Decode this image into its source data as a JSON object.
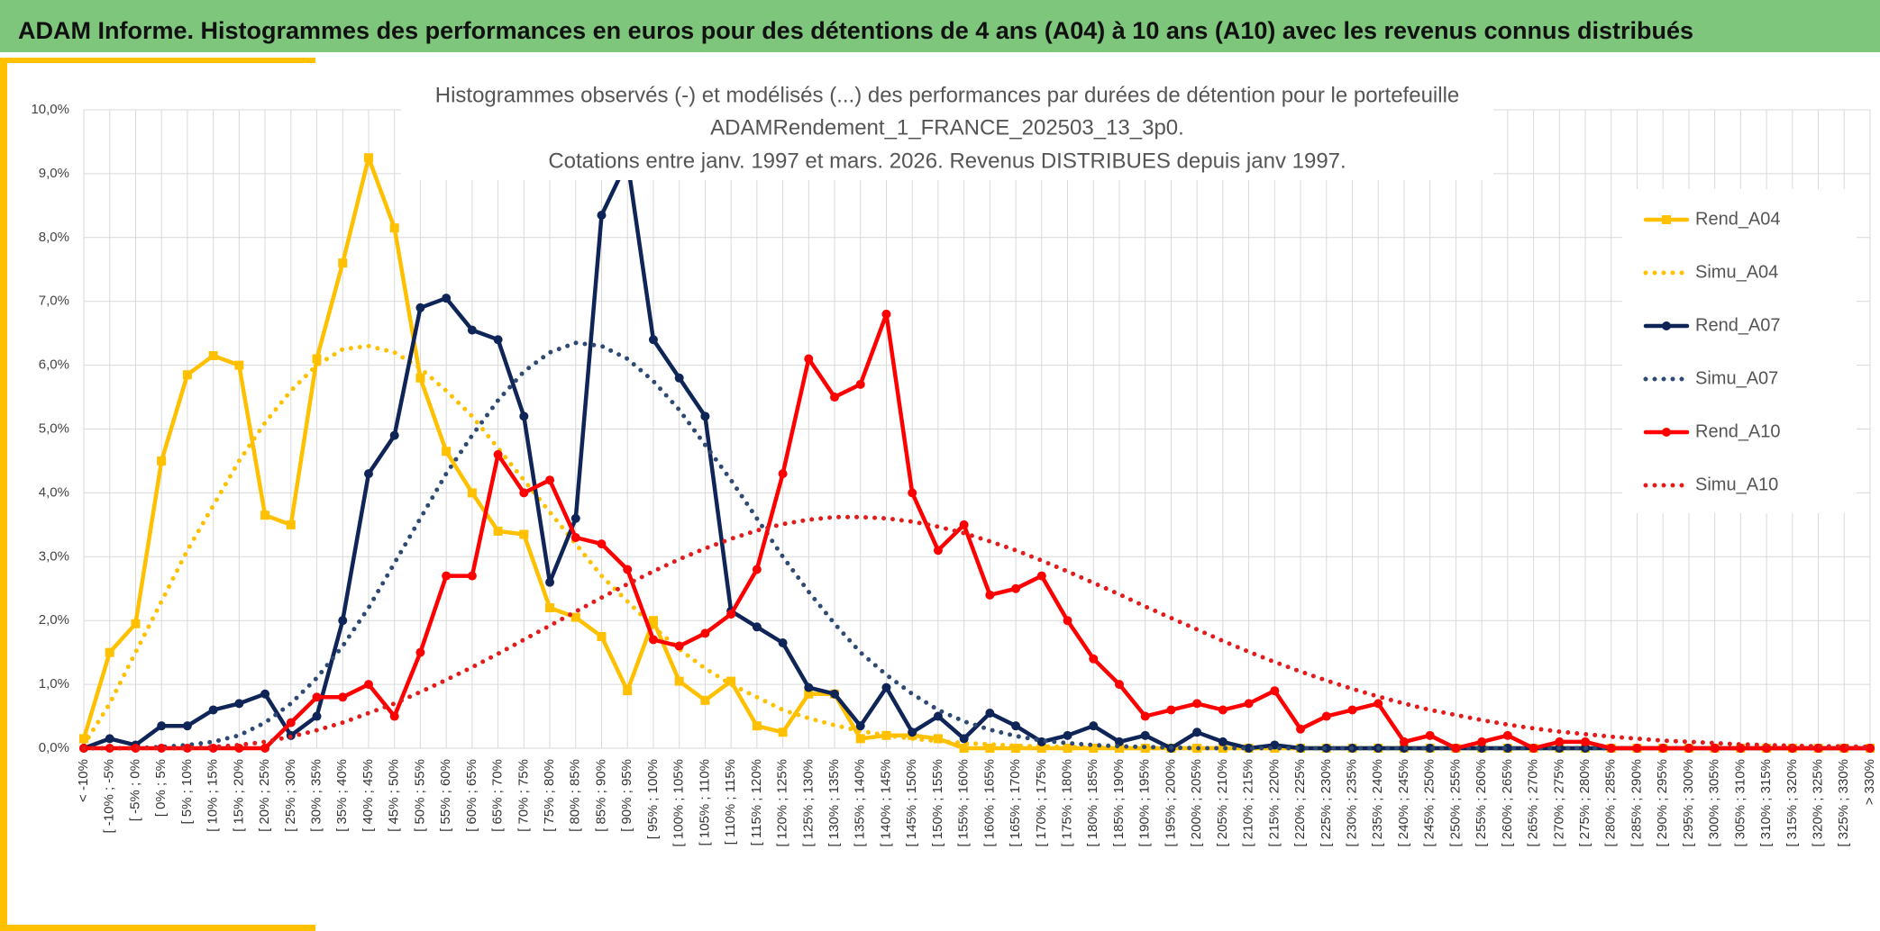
{
  "header_title": "ADAM Informe. Histogrammes des performances en euros pour des détentions de 4 ans (A04) à 10 ans (A10) avec les revenus connus distribués",
  "chart_data": {
    "type": "line",
    "title": [
      "Histogrammes observés (-) et modélisés (...) des performances par durées de détention pour le portefeuille",
      "ADAMRendement_1_FRANCE_202503_13_3p0.",
      "Cotations entre janv. 1997 et mars. 2026. Revenus DISTRIBUES depuis janv 1997."
    ],
    "categories": [
      "< -10%",
      "[ -10% ; -5%",
      "[ -5% ; 0%",
      "[ 0% ; 5%",
      "[ 5% ; 10%",
      "[ 10% ; 15%",
      "[ 15% ; 20%",
      "[ 20% ; 25%",
      "[ 25% ; 30%",
      "[ 30% ; 35%",
      "[ 35% ; 40%",
      "[ 40% ; 45%",
      "[ 45% ; 50%",
      "[ 50% ; 55%",
      "[ 55% ; 60%",
      "[ 60% ; 65%",
      "[ 65% ; 70%",
      "[ 70% ; 75%",
      "[ 75% ; 80%",
      "[ 80% ; 85%",
      "[ 85% ; 90%",
      "[ 90% ; 95%",
      "[ 95% ; 100%",
      "[ 100% ; 105%",
      "[ 105% ; 110%",
      "[ 110% ; 115%",
      "[ 115% ; 120%",
      "[ 120% ; 125%",
      "[ 125% ; 130%",
      "[ 130% ; 135%",
      "[ 135% ; 140%",
      "[ 140% ; 145%",
      "[ 145% ; 150%",
      "[ 150% ; 155%",
      "[ 155% ; 160%",
      "[ 160% ; 165%",
      "[ 165% ; 170%",
      "[ 170% ; 175%",
      "[ 175% ; 180%",
      "[ 180% ; 185%",
      "[ 185% ; 190%",
      "[ 190% ; 195%",
      "[ 195% ; 200%",
      "[ 200% ; 205%",
      "[ 205% ; 210%",
      "[ 210% ; 215%",
      "[ 215% ; 220%",
      "[ 220% ; 225%",
      "[ 225% ; 230%",
      "[ 230% ; 235%",
      "[ 235% ; 240%",
      "[ 240% ; 245%",
      "[ 245% ; 250%",
      "[ 250% ; 255%",
      "[ 255% ; 260%",
      "[ 260% ; 265%",
      "[ 265% ; 270%",
      "[ 270% ; 275%",
      "[ 275% ; 280%",
      "[ 280% ; 285%",
      "[ 285% ; 290%",
      "[ 290% ; 295%",
      "[ 295% ; 300%",
      "[ 300% ; 305%",
      "[ 305% ; 310%",
      "[ 310% ; 315%",
      "[ 315% ; 320%",
      "[ 320% ; 325%",
      "[ 325% ; 330%",
      "> 330%"
    ],
    "ylim": [
      0,
      10
    ],
    "yticks": [
      {
        "value": 0,
        "label": "0,0%"
      },
      {
        "value": 1,
        "label": "1,0%"
      },
      {
        "value": 2,
        "label": "2,0%"
      },
      {
        "value": 3,
        "label": "3,0%"
      },
      {
        "value": 4,
        "label": "4,0%"
      },
      {
        "value": 5,
        "label": "5,0%"
      },
      {
        "value": 6,
        "label": "6,0%"
      },
      {
        "value": 7,
        "label": "7,0%"
      },
      {
        "value": 8,
        "label": "8,0%"
      },
      {
        "value": 9,
        "label": "9,0%"
      },
      {
        "value": 10,
        "label": "10,0%"
      }
    ],
    "grid": true,
    "legend": "right",
    "series": [
      {
        "name": "Rend_A04",
        "color": "#ffc000",
        "style": "solid",
        "marker": "square",
        "values": [
          0.15,
          1.5,
          1.95,
          4.5,
          5.85,
          6.15,
          6.0,
          3.65,
          3.5,
          6.1,
          7.6,
          9.25,
          8.15,
          5.8,
          4.65,
          4.0,
          3.4,
          3.35,
          2.2,
          2.05,
          1.75,
          0.9,
          2.0,
          1.05,
          0.75,
          1.05,
          0.35,
          0.25,
          0.85,
          0.85,
          0.15,
          0.2,
          0.2,
          0.15,
          0,
          0,
          0,
          0,
          0,
          0,
          0,
          0,
          0,
          0,
          0,
          0,
          0,
          0,
          0,
          0,
          0,
          0,
          0,
          0,
          0,
          0,
          0,
          0,
          0,
          0,
          0,
          0,
          0,
          0,
          0,
          0,
          0,
          0,
          0,
          0
        ]
      },
      {
        "name": "Simu_A04",
        "color": "#ffc000",
        "style": "dotted",
        "marker": "none",
        "values": [
          0.05,
          0.7,
          1.5,
          2.3,
          3.1,
          3.8,
          4.5,
          5.1,
          5.6,
          6.0,
          6.25,
          6.3,
          6.2,
          5.95,
          5.6,
          5.2,
          4.7,
          4.2,
          3.7,
          3.2,
          2.7,
          2.3,
          1.9,
          1.55,
          1.25,
          1.0,
          0.8,
          0.6,
          0.47,
          0.36,
          0.27,
          0.2,
          0.15,
          0.11,
          0.08,
          0.06,
          0.04,
          0.03,
          0.02,
          0.01,
          0,
          0,
          0,
          0,
          0,
          0,
          0,
          0,
          0,
          0,
          0,
          0,
          0,
          0,
          0,
          0,
          0,
          0,
          0,
          0,
          0,
          0,
          0,
          0,
          0,
          0,
          0,
          0,
          0,
          0
        ]
      },
      {
        "name": "Rend_A07",
        "color": "#0f2557",
        "style": "solid",
        "marker": "circle",
        "values": [
          0,
          0.15,
          0.05,
          0.35,
          0.35,
          0.6,
          0.7,
          0.85,
          0.2,
          0.5,
          2.0,
          4.3,
          4.9,
          6.9,
          7.05,
          6.55,
          6.4,
          5.2,
          2.6,
          3.6,
          8.35,
          9.2,
          6.4,
          5.8,
          5.2,
          2.15,
          1.9,
          1.65,
          0.95,
          0.85,
          0.35,
          0.95,
          0.25,
          0.5,
          0.15,
          0.55,
          0.35,
          0.1,
          0.2,
          0.35,
          0.1,
          0.2,
          0,
          0.25,
          0.1,
          0,
          0.05,
          0,
          0,
          0,
          0,
          0,
          0,
          0,
          0,
          0,
          0,
          0,
          0,
          0,
          0,
          0,
          0,
          0,
          0,
          0,
          0,
          0,
          0,
          0
        ]
      },
      {
        "name": "Simu_A07",
        "color": "#2e4a72",
        "style": "dotted",
        "marker": "none",
        "values": [
          0,
          0,
          0,
          0.02,
          0.05,
          0.1,
          0.2,
          0.4,
          0.7,
          1.1,
          1.6,
          2.2,
          2.9,
          3.6,
          4.3,
          4.9,
          5.45,
          5.9,
          6.2,
          6.35,
          6.3,
          6.1,
          5.75,
          5.3,
          4.75,
          4.2,
          3.6,
          3.0,
          2.45,
          1.95,
          1.5,
          1.15,
          0.85,
          0.6,
          0.42,
          0.29,
          0.19,
          0.12,
          0.08,
          0.05,
          0.03,
          0.02,
          0.01,
          0,
          0,
          0,
          0,
          0,
          0,
          0,
          0,
          0,
          0,
          0,
          0,
          0,
          0,
          0,
          0,
          0,
          0,
          0,
          0,
          0,
          0,
          0,
          0,
          0,
          0,
          0
        ]
      },
      {
        "name": "Rend_A10",
        "color": "#ff0000",
        "style": "solid",
        "marker": "circle",
        "values": [
          0,
          0,
          0,
          0,
          0,
          0,
          0,
          0,
          0.4,
          0.8,
          0.8,
          1.0,
          0.5,
          1.5,
          2.7,
          2.7,
          4.6,
          4.0,
          4.2,
          3.3,
          3.2,
          2.8,
          1.7,
          1.6,
          1.8,
          2.1,
          2.8,
          4.3,
          6.1,
          5.5,
          5.7,
          6.8,
          4.0,
          3.1,
          3.5,
          2.4,
          2.5,
          2.7,
          2.0,
          1.4,
          1.0,
          0.5,
          0.6,
          0.7,
          0.6,
          0.7,
          0.9,
          0.3,
          0.5,
          0.6,
          0.7,
          0.1,
          0.2,
          0,
          0.1,
          0.2,
          0,
          0.1,
          0.1,
          0,
          0,
          0,
          0,
          0,
          0,
          0,
          0,
          0,
          0,
          0
        ]
      },
      {
        "name": "Simu_A10",
        "color": "#e31b1b",
        "style": "dotted",
        "marker": "none",
        "values": [
          0,
          0,
          0,
          0,
          0,
          0.02,
          0.05,
          0.1,
          0.18,
          0.28,
          0.4,
          0.55,
          0.7,
          0.88,
          1.07,
          1.27,
          1.48,
          1.7,
          1.92,
          2.14,
          2.36,
          2.57,
          2.77,
          2.96,
          3.13,
          3.28,
          3.41,
          3.51,
          3.58,
          3.62,
          3.62,
          3.6,
          3.55,
          3.47,
          3.37,
          3.24,
          3.1,
          2.94,
          2.77,
          2.59,
          2.41,
          2.22,
          2.04,
          1.86,
          1.68,
          1.51,
          1.35,
          1.2,
          1.06,
          0.93,
          0.81,
          0.7,
          0.6,
          0.52,
          0.44,
          0.37,
          0.31,
          0.26,
          0.22,
          0.18,
          0.15,
          0.12,
          0.1,
          0.08,
          0.06,
          0.05,
          0.04,
          0.03,
          0.03,
          0.02
        ]
      }
    ]
  }
}
